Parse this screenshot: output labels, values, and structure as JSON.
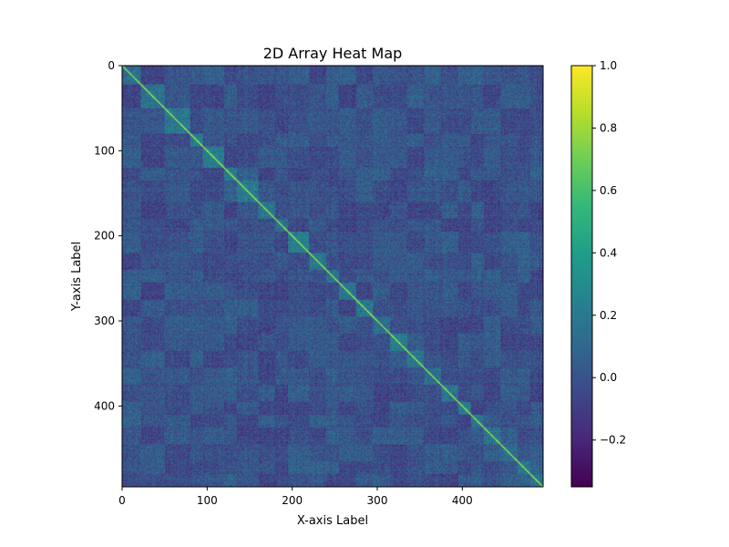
{
  "chart_data": {
    "type": "heatmap",
    "title": "2D Array Heat Map",
    "xlabel": "X-axis Label",
    "ylabel": "Y-axis Label",
    "rows": 495,
    "cols": 495,
    "xlim": [
      0,
      495
    ],
    "ylim": [
      495,
      0
    ],
    "x_ticks": [
      0,
      100,
      200,
      300,
      400
    ],
    "y_ticks": [
      0,
      100,
      200,
      300,
      400
    ],
    "colormap": "viridis",
    "value_range": [
      -0.35,
      1.0
    ],
    "colorbar_ticks": [
      1.0,
      0.8,
      0.6,
      0.4,
      0.2,
      0.0,
      -0.2
    ],
    "colorbar_tick_labels": [
      "1.0",
      "0.8",
      "0.6",
      "0.4",
      "0.2",
      "0.0",
      "−0.2"
    ],
    "diagonal_value": 1.0,
    "typical_offdiagonal_range": [
      -0.15,
      0.35
    ],
    "block_boundaries": [
      0,
      22,
      50,
      80,
      95,
      120,
      135,
      160,
      180,
      195,
      220,
      240,
      255,
      275,
      295,
      315,
      335,
      355,
      375,
      395,
      410,
      425,
      445,
      465,
      480,
      495
    ],
    "grid": false
  },
  "colors": {
    "viridis": [
      "#440154",
      "#482878",
      "#3e4989",
      "#31688e",
      "#26828e",
      "#1f9e89",
      "#35b779",
      "#6ece58",
      "#b5de2b",
      "#fde725"
    ],
    "axes": "#000000",
    "background": "#ffffff"
  }
}
